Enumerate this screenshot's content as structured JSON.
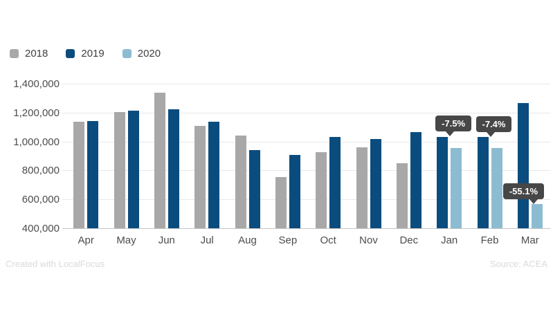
{
  "chart_data": {
    "type": "bar",
    "title": "",
    "xlabel": "",
    "ylabel": "",
    "categories": [
      "Apr",
      "May",
      "Jun",
      "Jul",
      "Aug",
      "Sep",
      "Oct",
      "Nov",
      "Dec",
      "Jan",
      "Feb",
      "Mar"
    ],
    "series": [
      {
        "name": "2018",
        "color": "#a8a8a8",
        "values": [
          1135000,
          1205000,
          1340000,
          1110000,
          1040000,
          755000,
          925000,
          960000,
          850000,
          null,
          null,
          null
        ]
      },
      {
        "name": "2019",
        "color": "#0b4c7e",
        "values": [
          1140000,
          1212000,
          1222000,
          1135000,
          940000,
          905000,
          1031000,
          1015000,
          1066000,
          1034000,
          1032000,
          1264000
        ]
      },
      {
        "name": "2020",
        "color": "#8cbcd1",
        "values": [
          null,
          null,
          null,
          null,
          null,
          null,
          null,
          null,
          null,
          956000,
          956000,
          567000
        ]
      }
    ],
    "ylim": [
      400000,
      1400000
    ],
    "ytick_step": 200000,
    "ytick_labels": [
      "400,000",
      "600,000",
      "800,000",
      "1,000,000",
      "1,200,000",
      "1,400,000"
    ],
    "grid": true,
    "legend_position": "top-left",
    "annotations": [
      {
        "category": "Jan",
        "label": "-7.5%",
        "anchor_series": "2019",
        "side": "left"
      },
      {
        "category": "Feb",
        "label": "-7.4%",
        "anchor_series": "2019",
        "side": "left"
      },
      {
        "category": "Mar",
        "label": "-55.1%",
        "anchor_series": "2020",
        "side": "right"
      }
    ]
  },
  "colors": {
    "grid": "#e8e8e8",
    "baseline": "#c5c5c5",
    "axis_text": "#4c4c4c",
    "tooltip_bg": "#474747",
    "tooltip_text": "#ffffff",
    "footer_text": "#dadada"
  },
  "footer": {
    "left": "Created with LocalFocus",
    "right": "Source: ACEA"
  }
}
